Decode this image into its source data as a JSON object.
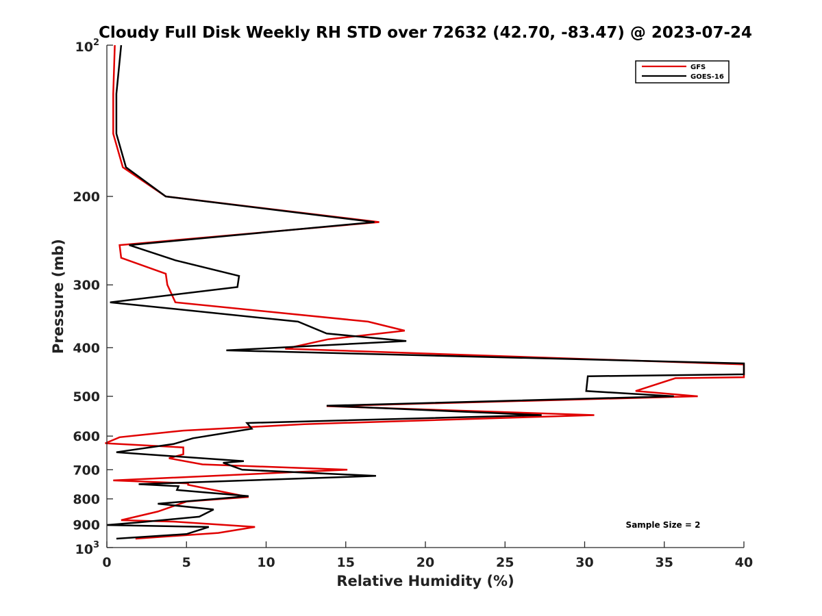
{
  "chart_data": {
    "type": "line",
    "title": "Cloudy Full Disk Weekly RH STD over 72632 (42.70, -83.47) @ 2023-07-24",
    "xlabel": "Relative Humidity (%)",
    "ylabel": "Pressure (mb)",
    "xlim": [
      0,
      40
    ],
    "ylim": [
      1000,
      100
    ],
    "yscale": "log",
    "x_ticks": [
      "0",
      "5",
      "10",
      "15",
      "20",
      "25",
      "30",
      "35",
      "40"
    ],
    "y_ticks": [
      {
        "value": 100,
        "base": "10",
        "exp": "2"
      },
      {
        "value": 200,
        "label": "200"
      },
      {
        "value": 300,
        "label": "300"
      },
      {
        "value": 400,
        "label": "400"
      },
      {
        "value": 500,
        "label": "500"
      },
      {
        "value": 600,
        "label": "600"
      },
      {
        "value": 700,
        "label": "700"
      },
      {
        "value": 800,
        "label": "800"
      },
      {
        "value": 900,
        "label": "900"
      },
      {
        "value": 1000,
        "base": "10",
        "exp": "3"
      }
    ],
    "legend_position": "top-right",
    "annotation": "Sample Size = 2",
    "series": [
      {
        "name": "GFS",
        "color": "#e00000",
        "points": [
          [
            0.5,
            100
          ],
          [
            0.4,
            125
          ],
          [
            0.4,
            150
          ],
          [
            1.0,
            175
          ],
          [
            3.7,
            200
          ],
          [
            17.1,
            225
          ],
          [
            0.8,
            250
          ],
          [
            0.9,
            265
          ],
          [
            3.7,
            285
          ],
          [
            3.8,
            300
          ],
          [
            4.3,
            325
          ],
          [
            16.4,
            355
          ],
          [
            18.7,
            370
          ],
          [
            13.9,
            385
          ],
          [
            11.2,
            402
          ],
          [
            40.0,
            432
          ],
          [
            40.0,
            458
          ],
          [
            35.7,
            460
          ],
          [
            33.2,
            488
          ],
          [
            37.1,
            500
          ],
          [
            13.8,
            523
          ],
          [
            30.6,
            545
          ],
          [
            12.4,
            568
          ],
          [
            4.8,
            585
          ],
          [
            0.8,
            603
          ],
          [
            -0.1,
            620
          ],
          [
            4.8,
            632
          ],
          [
            4.8,
            652
          ],
          [
            3.9,
            664
          ],
          [
            6.0,
            683
          ],
          [
            15.1,
            700
          ],
          [
            0.4,
            735
          ],
          [
            5.1,
            745
          ],
          [
            5.1,
            750
          ],
          [
            8.9,
            793
          ],
          [
            5.0,
            810
          ],
          [
            3.2,
            848
          ],
          [
            0.9,
            882
          ],
          [
            4.2,
            888
          ],
          [
            9.3,
            910
          ],
          [
            7.0,
            935
          ],
          [
            1.8,
            960
          ]
        ]
      },
      {
        "name": "GOES-16",
        "color": "#000000",
        "points": [
          [
            0.9,
            100
          ],
          [
            0.6,
            125
          ],
          [
            0.6,
            150
          ],
          [
            1.2,
            175
          ],
          [
            3.7,
            200
          ],
          [
            16.8,
            225
          ],
          [
            1.4,
            250
          ],
          [
            4.3,
            268
          ],
          [
            8.3,
            288
          ],
          [
            8.2,
            303
          ],
          [
            0.2,
            325
          ],
          [
            12.0,
            355
          ],
          [
            13.8,
            375
          ],
          [
            18.8,
            388
          ],
          [
            7.5,
            405
          ],
          [
            40.0,
            430
          ],
          [
            40.0,
            452
          ],
          [
            30.2,
            456
          ],
          [
            30.1,
            488
          ],
          [
            35.6,
            500
          ],
          [
            13.8,
            522
          ],
          [
            27.3,
            545
          ],
          [
            8.8,
            565
          ],
          [
            9.1,
            580
          ],
          [
            5.4,
            606
          ],
          [
            4.2,
            622
          ],
          [
            0.6,
            646
          ],
          [
            8.6,
            673
          ],
          [
            7.3,
            678
          ],
          [
            8.5,
            700
          ],
          [
            16.9,
            720
          ],
          [
            2.0,
            748
          ],
          [
            4.5,
            755
          ],
          [
            4.4,
            768
          ],
          [
            8.9,
            790
          ],
          [
            3.2,
            818
          ],
          [
            6.7,
            840
          ],
          [
            5.8,
            868
          ],
          [
            2.0,
            891
          ],
          [
            0.0,
            902
          ],
          [
            6.4,
            910
          ],
          [
            5.0,
            940
          ],
          [
            0.6,
            960
          ]
        ]
      }
    ]
  }
}
